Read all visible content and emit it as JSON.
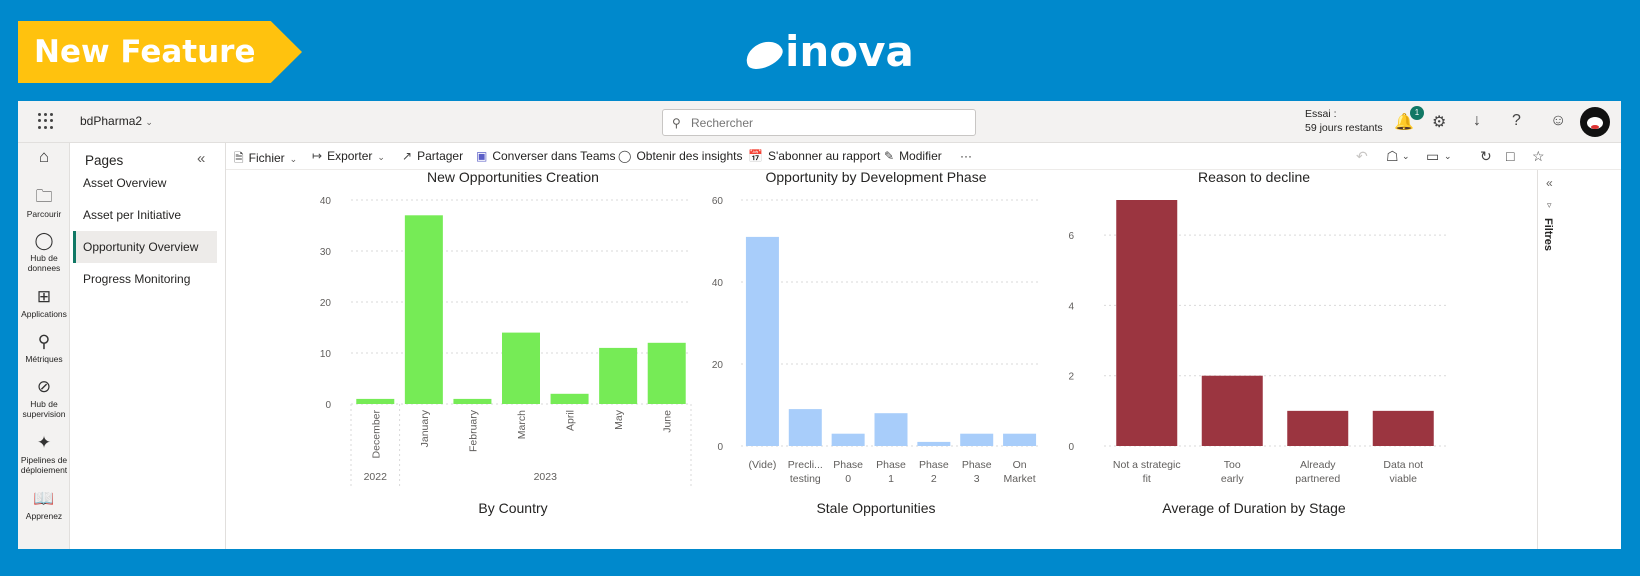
{
  "banner": {
    "label": "New Feature"
  },
  "logo": {
    "text": "inova"
  },
  "topbar": {
    "workspace": "bdPharma2",
    "search_placeholder": "Rechercher",
    "trial_line1": "Essai :",
    "trial_line2": "59 jours restants",
    "notification_count": "1"
  },
  "leftnav": [
    {
      "label": "",
      "icon": "home-icon"
    },
    {
      "label": "Parcourir",
      "icon": "folder-icon"
    },
    {
      "label": "Hub de donnees",
      "icon": "data-hub-icon"
    },
    {
      "label": "Applications",
      "icon": "apps-icon"
    },
    {
      "label": "Métriques",
      "icon": "trophy-icon"
    },
    {
      "label": "Hub de supervision",
      "icon": "monitoring-icon"
    },
    {
      "label": "Pipelines de déploiement",
      "icon": "rocket-icon"
    },
    {
      "label": "Apprenez",
      "icon": "book-icon"
    }
  ],
  "pages": {
    "title": "Pages",
    "items": [
      "Asset Overview",
      "Asset per Initiative",
      "Opportunity Overview",
      "Progress Monitoring"
    ],
    "active_index": 2
  },
  "toolbar": {
    "fichier": "Fichier",
    "exporter": "Exporter",
    "partager": "Partager",
    "teams": "Converser dans Teams",
    "insights": "Obtenir des insights",
    "abonner": "S'abonner au rapport",
    "modifier": "Modifier",
    "more": "···"
  },
  "filters": {
    "label": "Filtres"
  },
  "bottom_titles": [
    "By Country",
    "Stale Opportunities",
    "Average of Duration by Stage"
  ],
  "colors": {
    "green": "#76eb56",
    "blue": "#a8cdfa",
    "red": "#9b3540",
    "accent": "#117865"
  },
  "chart_data": [
    {
      "type": "bar",
      "title": "New Opportunities Creation",
      "categories": [
        "December",
        "January",
        "February",
        "March",
        "April",
        "May",
        "June"
      ],
      "groups": [
        {
          "label": "2022",
          "count": 1
        },
        {
          "label": "2023",
          "count": 6
        }
      ],
      "values": [
        1,
        37,
        1,
        14,
        2,
        11,
        12
      ],
      "ylim": [
        0,
        40
      ],
      "yticks": [
        0,
        10,
        20,
        30,
        40
      ],
      "color": "#76eb56"
    },
    {
      "type": "bar",
      "title": "Opportunity by Development Phase",
      "categories": [
        "(Vide)",
        "Precli... testing",
        "Phase 0",
        "Phase 1",
        "Phase 2",
        "Phase 3",
        "On Market"
      ],
      "values": [
        51,
        9,
        3,
        8,
        1,
        3,
        3
      ],
      "ylim": [
        0,
        60
      ],
      "yticks": [
        0,
        20,
        40,
        60
      ],
      "color": "#a8cdfa"
    },
    {
      "type": "bar",
      "title": "Reason to decline",
      "categories": [
        "Not a strategic fit",
        "Too early",
        "Already partnered",
        "Data not viable"
      ],
      "values": [
        7,
        2,
        1,
        1
      ],
      "ylim": [
        0,
        7
      ],
      "yticks": [
        0,
        2,
        4,
        6
      ],
      "color": "#9b3540"
    }
  ]
}
